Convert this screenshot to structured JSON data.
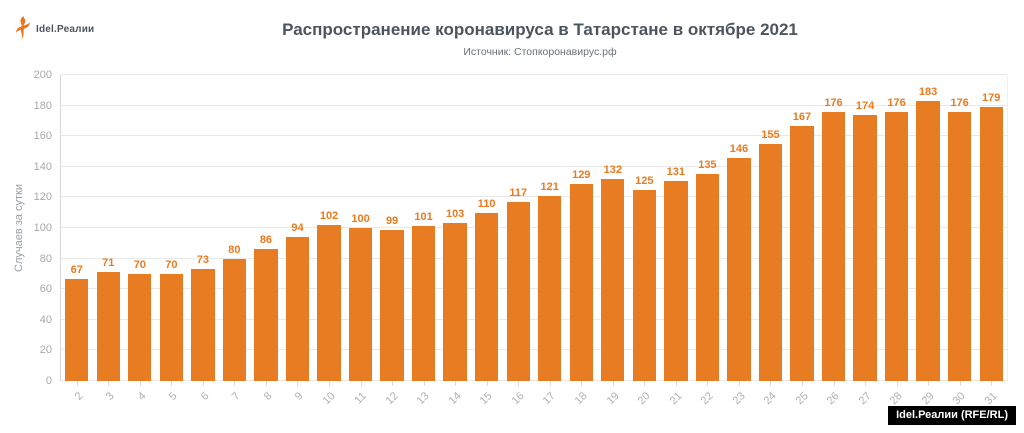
{
  "page": {
    "background": "#ffffff"
  },
  "header": {
    "logo": {
      "brand": "Idel.Реалии",
      "icon": "rferl-torch-icon",
      "icon_color": "#e87722",
      "text_color": "#4b555f"
    },
    "title": "Распространение коронавируса в Татарстане в октябре 2021",
    "subtitle": "Источник: Стопкоронавирус.рф"
  },
  "watermark": {
    "label": "Idel.Реалии (RFE/RL)",
    "background": "#000000",
    "text_color": "#ffffff"
  },
  "chart_data": {
    "type": "bar",
    "title": "Распространение коронавируса в Татарстане в октябре 2021",
    "subtitle": "Источник: Стопкоронавирус.рф",
    "categories": [
      "2",
      "3",
      "4",
      "5",
      "6",
      "7",
      "8",
      "9",
      "10",
      "11",
      "12",
      "13",
      "14",
      "15",
      "16",
      "17",
      "18",
      "19",
      "20",
      "21",
      "22",
      "23",
      "24",
      "25",
      "26",
      "27",
      "28",
      "29",
      "30",
      "31"
    ],
    "values": [
      67,
      71,
      70,
      70,
      73,
      80,
      86,
      94,
      102,
      100,
      99,
      101,
      103,
      110,
      117,
      121,
      129,
      132,
      125,
      131,
      135,
      146,
      155,
      167,
      176,
      174,
      176,
      183,
      176,
      179
    ],
    "xlabel": "",
    "ylabel": "Случаев за сутки",
    "ylim": [
      0,
      200
    ],
    "yticks": [
      0,
      20,
      40,
      60,
      80,
      100,
      120,
      140,
      160,
      180,
      200
    ],
    "grid": true,
    "legend": false,
    "bar_color": "#e87c23",
    "value_label_color": "#ec7a1d",
    "axis_text_color": "#a8a8a8"
  }
}
